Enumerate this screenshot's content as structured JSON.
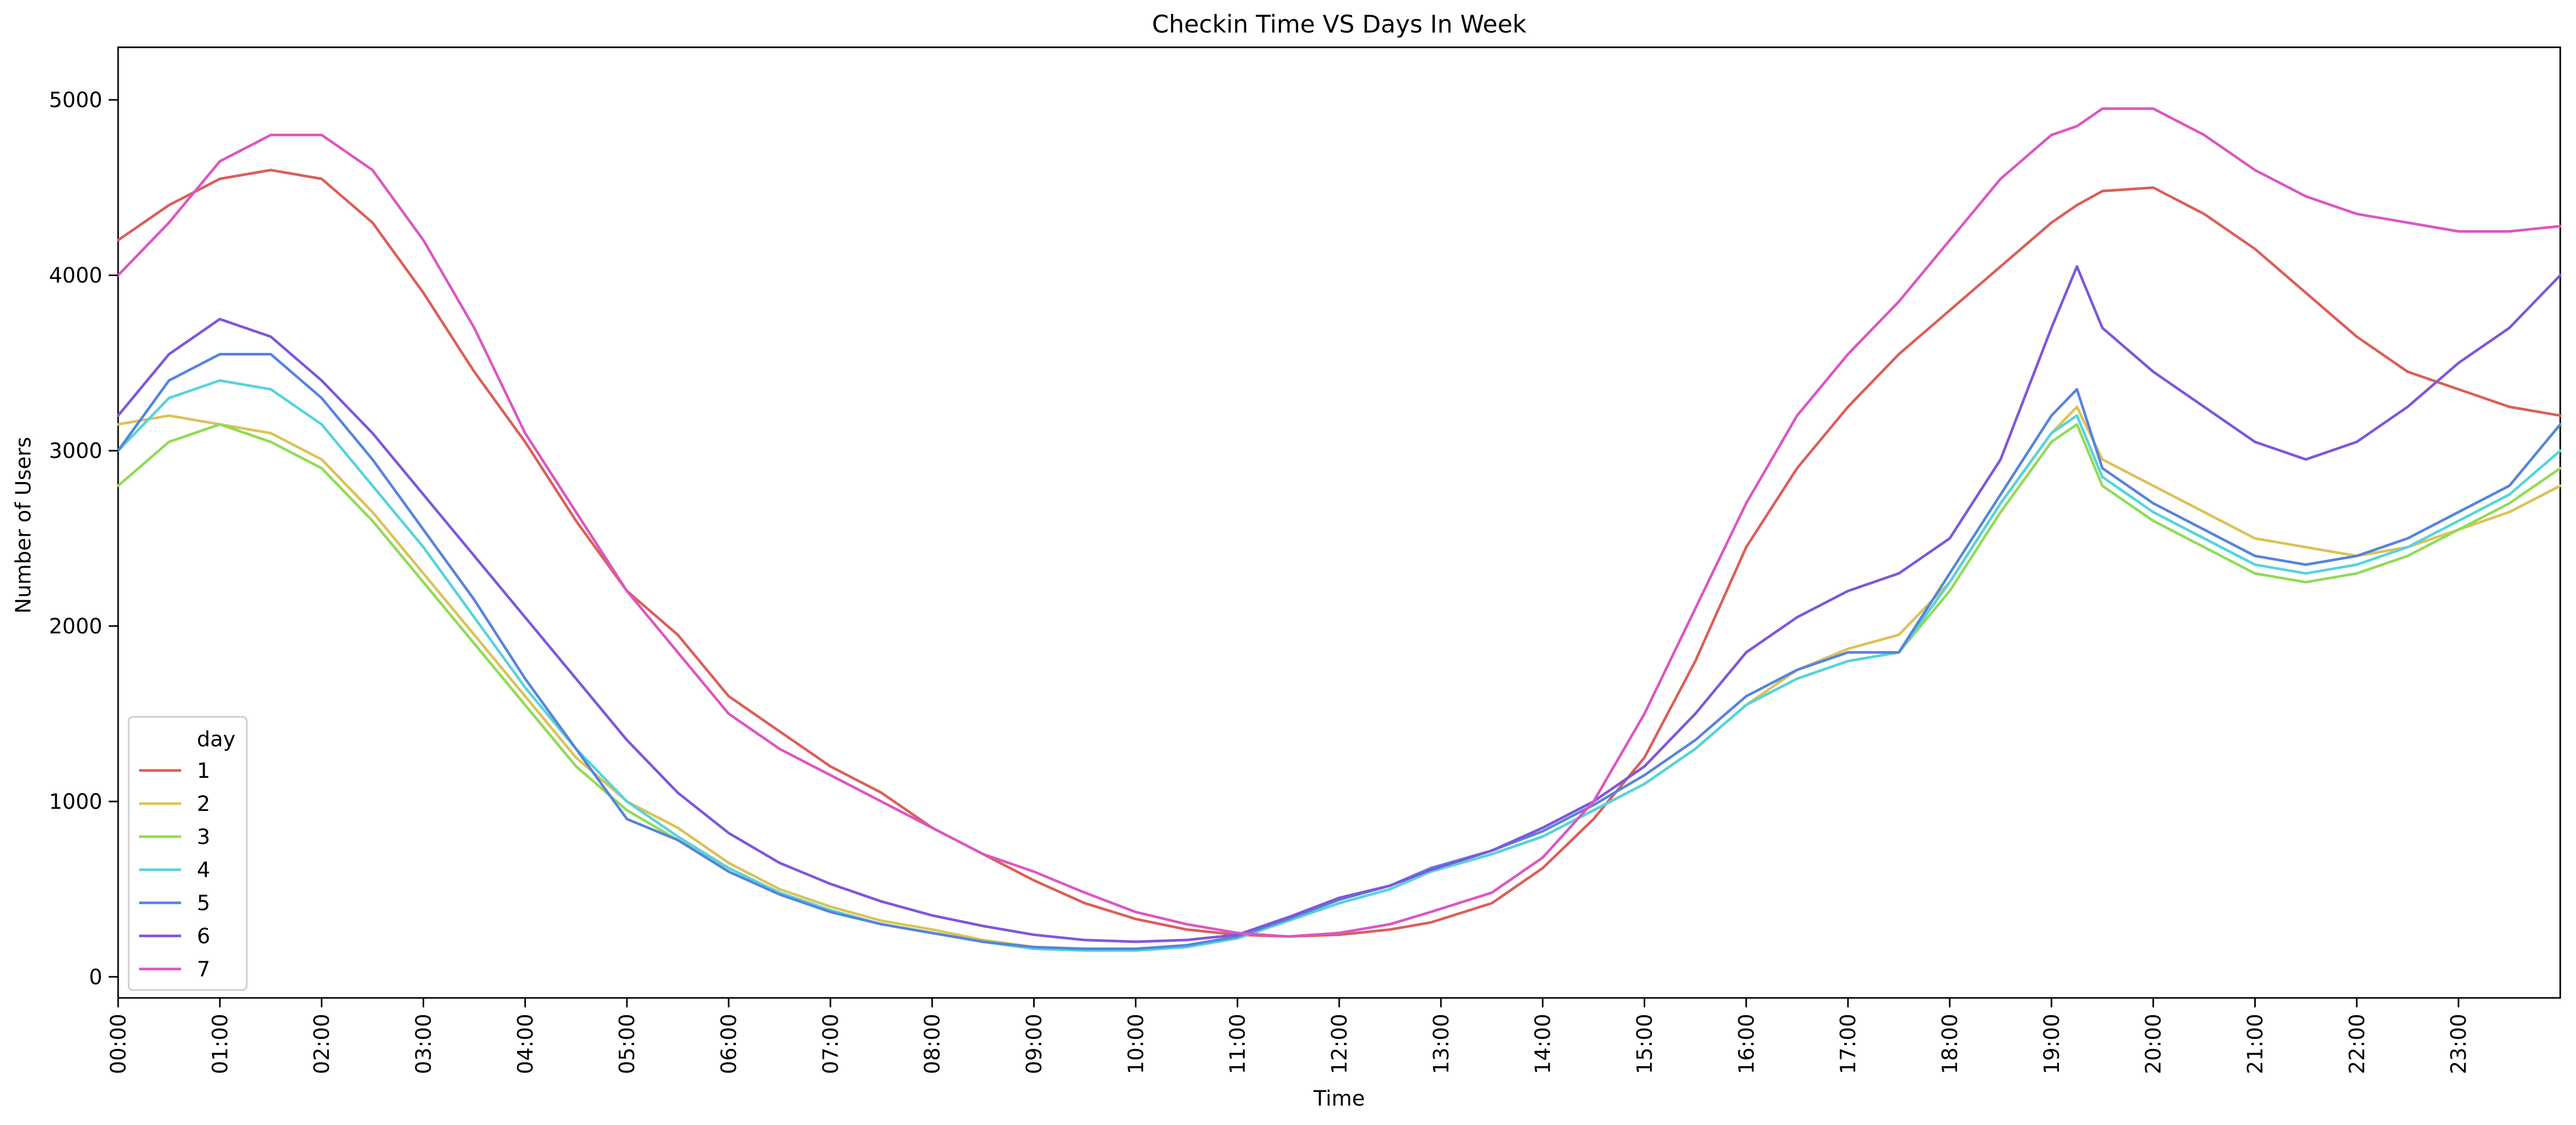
{
  "chart_data": {
    "type": "line",
    "title": "Checkin Time VS Days In Week",
    "xlabel": "Time",
    "ylabel": "Number of Users",
    "x_ticks": [
      "00:00",
      "01:00",
      "02:00",
      "03:00",
      "04:00",
      "05:00",
      "06:00",
      "07:00",
      "08:00",
      "09:00",
      "10:00",
      "11:00",
      "12:00",
      "13:00",
      "14:00",
      "15:00",
      "16:00",
      "17:00",
      "18:00",
      "19:00",
      "20:00",
      "21:00",
      "22:00",
      "23:00"
    ],
    "x_hours": [
      0,
      0.5,
      1,
      1.5,
      2,
      2.5,
      3,
      3.5,
      4,
      4.5,
      5,
      5.5,
      6,
      6.5,
      7,
      7.5,
      8,
      8.5,
      9,
      9.5,
      10,
      10.5,
      11,
      11.5,
      12,
      12.5,
      12.9,
      13.5,
      14,
      14.5,
      15,
      15.5,
      16,
      16.5,
      17,
      17.5,
      18,
      18.5,
      19,
      19.25,
      19.5,
      20,
      20.5,
      21,
      21.5,
      22,
      22.5,
      23,
      23.5,
      24
    ],
    "xlim": [
      0,
      24
    ],
    "yticks": [
      0,
      1000,
      2000,
      3000,
      4000,
      5000
    ],
    "ylim": [
      -120,
      5300
    ],
    "grid": false,
    "legend": {
      "title": "day",
      "position": "lower-left"
    },
    "series": [
      {
        "name": "1",
        "color": "#db5f57",
        "values": [
          4200,
          4400,
          4550,
          4600,
          4550,
          4300,
          3900,
          3450,
          3050,
          2600,
          2200,
          1950,
          1600,
          1400,
          1200,
          1050,
          850,
          700,
          550,
          420,
          330,
          270,
          240,
          230,
          240,
          270,
          310,
          420,
          620,
          900,
          1250,
          1800,
          2450,
          2900,
          3250,
          3550,
          3800,
          4050,
          4300,
          4400,
          4480,
          4500,
          4350,
          4150,
          3900,
          3650,
          3450,
          3350,
          3250,
          3200
        ]
      },
      {
        "name": "2",
        "color": "#dbc257",
        "values": [
          3150,
          3200,
          3150,
          3100,
          2950,
          2650,
          2300,
          1950,
          1600,
          1250,
          1000,
          850,
          650,
          500,
          400,
          320,
          270,
          210,
          170,
          160,
          160,
          180,
          220,
          320,
          420,
          500,
          600,
          700,
          800,
          950,
          1100,
          1300,
          1550,
          1750,
          1870,
          1950,
          2250,
          2700,
          3100,
          3250,
          2950,
          2800,
          2650,
          2500,
          2450,
          2400,
          2450,
          2550,
          2650,
          2800
        ]
      },
      {
        "name": "3",
        "color": "#91db57",
        "values": [
          2800,
          3050,
          3150,
          3050,
          2900,
          2600,
          2250,
          1900,
          1550,
          1200,
          950,
          780,
          620,
          480,
          380,
          300,
          250,
          200,
          160,
          150,
          150,
          170,
          220,
          320,
          420,
          500,
          600,
          700,
          800,
          950,
          1100,
          1300,
          1550,
          1700,
          1800,
          1850,
          2200,
          2650,
          3050,
          3150,
          2800,
          2600,
          2450,
          2300,
          2250,
          2300,
          2400,
          2550,
          2700,
          2900
        ]
      },
      {
        "name": "4",
        "color": "#57d3db",
        "values": [
          3000,
          3300,
          3400,
          3350,
          3150,
          2800,
          2450,
          2050,
          1650,
          1300,
          1000,
          800,
          620,
          480,
          380,
          300,
          250,
          200,
          160,
          150,
          150,
          170,
          220,
          320,
          420,
          500,
          600,
          700,
          800,
          950,
          1100,
          1300,
          1550,
          1700,
          1800,
          1850,
          2250,
          2700,
          3100,
          3200,
          2850,
          2650,
          2500,
          2350,
          2300,
          2350,
          2450,
          2600,
          2750,
          3000
        ]
      },
      {
        "name": "5",
        "color": "#5784db",
        "values": [
          3000,
          3400,
          3550,
          3550,
          3300,
          2950,
          2550,
          2150,
          1700,
          1300,
          900,
          780,
          600,
          470,
          370,
          300,
          250,
          200,
          170,
          160,
          160,
          180,
          230,
          330,
          440,
          520,
          620,
          720,
          830,
          980,
          1150,
          1350,
          1600,
          1750,
          1850,
          1850,
          2300,
          2750,
          3200,
          3350,
          2900,
          2700,
          2550,
          2400,
          2350,
          2400,
          2500,
          2650,
          2800,
          3150
        ]
      },
      {
        "name": "6",
        "color": "#7e57db",
        "values": [
          3200,
          3550,
          3750,
          3650,
          3400,
          3100,
          2750,
          2400,
          2050,
          1700,
          1350,
          1050,
          820,
          650,
          530,
          430,
          350,
          290,
          240,
          210,
          200,
          210,
          240,
          340,
          450,
          520,
          610,
          720,
          850,
          1000,
          1200,
          1500,
          1850,
          2050,
          2200,
          2300,
          2500,
          2950,
          3700,
          4050,
          3700,
          3450,
          3250,
          3050,
          2950,
          3050,
          3250,
          3500,
          3700,
          4000
        ]
      },
      {
        "name": "7",
        "color": "#db57c2",
        "values": [
          4000,
          4300,
          4650,
          4800,
          4800,
          4600,
          4200,
          3700,
          3100,
          2650,
          2200,
          1850,
          1500,
          1300,
          1150,
          1000,
          850,
          700,
          600,
          480,
          370,
          300,
          250,
          230,
          250,
          300,
          370,
          480,
          680,
          1000,
          1500,
          2100,
          2700,
          3200,
          3550,
          3850,
          4200,
          4550,
          4800,
          4850,
          4950,
          4950,
          4800,
          4600,
          4450,
          4350,
          4300,
          4250,
          4250,
          4280
        ]
      }
    ]
  }
}
